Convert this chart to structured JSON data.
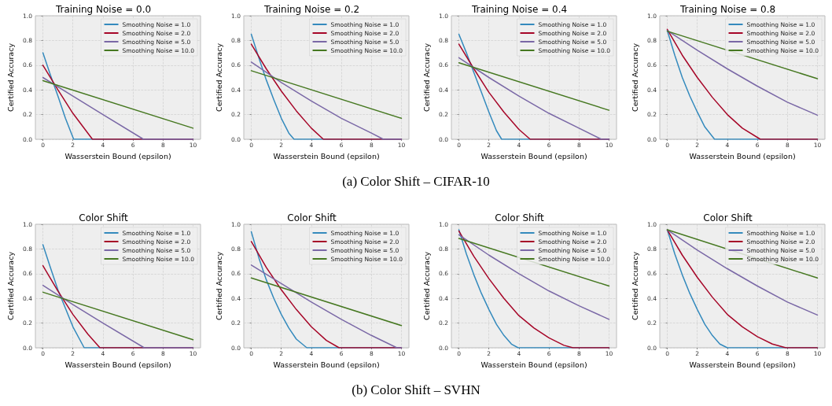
{
  "chart_data": [
    {
      "type": "line",
      "title": "Training Noise = 0.0",
      "xlabel": "Wasserstein Bound (epsilon)",
      "ylabel": "Certified Accuracy",
      "annotations": [
        "(a) Color Shift – CIFAR-10"
      ],
      "xlim": [
        -0.5,
        10.5
      ],
      "xticks": [
        0,
        2,
        4,
        6,
        8,
        10
      ],
      "ylim": [
        0,
        1
      ],
      "yticks": [
        {
          "value": 0,
          "label": "0.0"
        },
        {
          "value": 0.2,
          "label": "0.2"
        },
        {
          "value": 0.4,
          "label": "0.4"
        },
        {
          "value": 0.6,
          "label": "0.6"
        },
        {
          "value": 0.8,
          "label": "0.8"
        },
        {
          "value": 1,
          "label": "1.0"
        }
      ],
      "grid": true,
      "legend": "top right",
      "marker": "none",
      "line_style": "solid",
      "series": [
        {
          "name": "Smoothing Noise = 1.0",
          "color": "#348abd",
          "x": [
            0,
            0.5,
            1,
            1.5,
            2.05,
            10
          ],
          "values": [
            0.7,
            0.52,
            0.35,
            0.17,
            0,
            0
          ]
        },
        {
          "name": "Smoothing Noise = 2.0",
          "color": "#a60628",
          "x": [
            0,
            1,
            2,
            3.3,
            10
          ],
          "values": [
            0.6,
            0.4,
            0.21,
            0,
            0
          ]
        },
        {
          "name": "Smoothing Noise = 5.0",
          "color": "#7a68a6",
          "x": [
            0,
            2,
            4,
            6.7,
            10
          ],
          "values": [
            0.5,
            0.35,
            0.2,
            0,
            0
          ]
        },
        {
          "name": "Smoothing Noise = 10.0",
          "color": "#467821",
          "x": [
            0,
            10
          ],
          "values": [
            0.475,
            0.09
          ]
        }
      ]
    },
    {
      "type": "line",
      "title": "Training Noise = 0.2",
      "xlabel": "Wasserstein Bound (epsilon)",
      "ylabel": "Certified Accuracy",
      "xlim": [
        -0.5,
        10.5
      ],
      "xticks": [
        0,
        2,
        4,
        6,
        8,
        10
      ],
      "ylim": [
        0,
        1
      ],
      "yticks": [
        {
          "value": 0,
          "label": "0.0"
        },
        {
          "value": 0.2,
          "label": "0.2"
        },
        {
          "value": 0.4,
          "label": "0.4"
        },
        {
          "value": 0.6,
          "label": "0.6"
        },
        {
          "value": 0.8,
          "label": "0.8"
        },
        {
          "value": 1,
          "label": "1.0"
        }
      ],
      "grid": true,
      "legend": "top right",
      "marker": "none",
      "line_style": "solid",
      "series": [
        {
          "name": "Smoothing Noise = 1.0",
          "color": "#348abd",
          "x": [
            0,
            0.5,
            1,
            1.5,
            2,
            2.5,
            2.85,
            10
          ],
          "values": [
            0.85,
            0.66,
            0.48,
            0.32,
            0.17,
            0.05,
            0,
            0
          ]
        },
        {
          "name": "Smoothing Noise = 2.0",
          "color": "#a60628",
          "x": [
            0,
            1,
            2,
            3,
            4,
            4.8,
            10
          ],
          "values": [
            0.77,
            0.57,
            0.39,
            0.23,
            0.09,
            0,
            0
          ]
        },
        {
          "name": "Smoothing Noise = 5.0",
          "color": "#7a68a6",
          "x": [
            0,
            2,
            4,
            6,
            8,
            8.8,
            10
          ],
          "values": [
            0.625,
            0.46,
            0.31,
            0.17,
            0.05,
            0,
            0
          ]
        },
        {
          "name": "Smoothing Noise = 10.0",
          "color": "#467821",
          "x": [
            0,
            10
          ],
          "values": [
            0.555,
            0.17
          ]
        }
      ]
    },
    {
      "type": "line",
      "title": "Training Noise = 0.4",
      "xlabel": "Wasserstein Bound (epsilon)",
      "ylabel": "Certified Accuracy",
      "xlim": [
        -0.5,
        10.5
      ],
      "xticks": [
        0,
        2,
        4,
        6,
        8,
        10
      ],
      "ylim": [
        0,
        1
      ],
      "yticks": [
        {
          "value": 0,
          "label": "0.0"
        },
        {
          "value": 0.2,
          "label": "0.2"
        },
        {
          "value": 0.4,
          "label": "0.4"
        },
        {
          "value": 0.6,
          "label": "0.6"
        },
        {
          "value": 0.8,
          "label": "0.8"
        },
        {
          "value": 1,
          "label": "1.0"
        }
      ],
      "grid": true,
      "legend": "top right",
      "marker": "none",
      "line_style": "solid",
      "series": [
        {
          "name": "Smoothing Noise = 1.0",
          "color": "#348abd",
          "x": [
            0,
            0.5,
            1,
            1.5,
            2,
            2.5,
            2.85,
            10
          ],
          "values": [
            0.85,
            0.7,
            0.54,
            0.38,
            0.22,
            0.07,
            0,
            0
          ]
        },
        {
          "name": "Smoothing Noise = 2.0",
          "color": "#a60628",
          "x": [
            0,
            1,
            2,
            3,
            4,
            4.75,
            10
          ],
          "values": [
            0.77,
            0.57,
            0.38,
            0.22,
            0.08,
            0,
            0
          ]
        },
        {
          "name": "Smoothing Noise = 5.0",
          "color": "#7a68a6",
          "x": [
            0,
            2,
            4,
            6,
            8,
            9.5,
            10
          ],
          "values": [
            0.66,
            0.5,
            0.35,
            0.21,
            0.09,
            0,
            0
          ]
        },
        {
          "name": "Smoothing Noise = 10.0",
          "color": "#467821",
          "x": [
            0,
            10
          ],
          "values": [
            0.62,
            0.235
          ]
        }
      ]
    },
    {
      "type": "line",
      "title": "Training Noise = 0.8",
      "xlabel": "Wasserstein Bound (epsilon)",
      "ylabel": "Certified Accuracy",
      "xlim": [
        -0.5,
        10.5
      ],
      "xticks": [
        0,
        2,
        4,
        6,
        8,
        10
      ],
      "ylim": [
        0,
        1
      ],
      "yticks": [
        {
          "value": 0,
          "label": "0.0"
        },
        {
          "value": 0.2,
          "label": "0.2"
        },
        {
          "value": 0.4,
          "label": "0.4"
        },
        {
          "value": 0.6,
          "label": "0.6"
        },
        {
          "value": 0.8,
          "label": "0.8"
        },
        {
          "value": 1,
          "label": "1.0"
        }
      ],
      "grid": true,
      "legend": "top right",
      "marker": "none",
      "line_style": "solid",
      "series": [
        {
          "name": "Smoothing Noise = 1.0",
          "color": "#348abd",
          "x": [
            0,
            0.5,
            1,
            1.5,
            2,
            2.5,
            3.15,
            10
          ],
          "values": [
            0.88,
            0.68,
            0.5,
            0.35,
            0.22,
            0.1,
            0,
            0
          ]
        },
        {
          "name": "Smoothing Noise = 2.0",
          "color": "#a60628",
          "x": [
            0,
            1,
            2,
            3,
            4,
            5,
            6.2,
            10
          ],
          "values": [
            0.89,
            0.68,
            0.5,
            0.34,
            0.2,
            0.09,
            0,
            0
          ]
        },
        {
          "name": "Smoothing Noise = 5.0",
          "color": "#7a68a6",
          "x": [
            0,
            2,
            4,
            6,
            8,
            10
          ],
          "values": [
            0.88,
            0.72,
            0.57,
            0.43,
            0.3,
            0.195
          ]
        },
        {
          "name": "Smoothing Noise = 10.0",
          "color": "#467821",
          "x": [
            0,
            10
          ],
          "values": [
            0.875,
            0.49
          ]
        }
      ]
    },
    {
      "type": "line",
      "title": "Color Shift",
      "xlabel": "Wasserstein Bound (epsilon)",
      "ylabel": "Certified Accuracy",
      "annotations": [
        "(b) Color Shift – SVHN"
      ],
      "xlim": [
        -0.5,
        10.5
      ],
      "xticks": [
        0,
        2,
        4,
        6,
        8,
        10
      ],
      "ylim": [
        0,
        1
      ],
      "yticks": [
        {
          "value": 0,
          "label": "0.0"
        },
        {
          "value": 0.2,
          "label": "0.2"
        },
        {
          "value": 0.4,
          "label": "0.4"
        },
        {
          "value": 0.6,
          "label": "0.6"
        },
        {
          "value": 0.8,
          "label": "0.8"
        },
        {
          "value": 1,
          "label": "1.0"
        }
      ],
      "grid": true,
      "legend": "top right",
      "marker": "none",
      "line_style": "solid",
      "series": [
        {
          "name": "Smoothing Noise = 1.0",
          "color": "#348abd",
          "x": [
            0,
            0.5,
            1,
            1.5,
            2,
            2.75,
            10
          ],
          "values": [
            0.835,
            0.65,
            0.47,
            0.32,
            0.17,
            0,
            0
          ]
        },
        {
          "name": "Smoothing Noise = 2.0",
          "color": "#a60628",
          "x": [
            0,
            1,
            2,
            3,
            3.8,
            10
          ],
          "values": [
            0.665,
            0.46,
            0.27,
            0.11,
            0,
            0
          ]
        },
        {
          "name": "Smoothing Noise = 5.0",
          "color": "#7a68a6",
          "x": [
            0,
            2,
            4,
            6.75,
            10
          ],
          "values": [
            0.505,
            0.35,
            0.2,
            0,
            0
          ]
        },
        {
          "name": "Smoothing Noise = 10.0",
          "color": "#467821",
          "x": [
            0,
            10
          ],
          "values": [
            0.45,
            0.065
          ]
        }
      ]
    },
    {
      "type": "line",
      "title": "Color Shift",
      "xlabel": "Wasserstein Bound (epsilon)",
      "ylabel": "Certified Accuracy",
      "xlim": [
        -0.5,
        10.5
      ],
      "xticks": [
        0,
        2,
        4,
        6,
        8,
        10
      ],
      "ylim": [
        0,
        1
      ],
      "yticks": [
        {
          "value": 0,
          "label": "0.0"
        },
        {
          "value": 0.2,
          "label": "0.2"
        },
        {
          "value": 0.4,
          "label": "0.4"
        },
        {
          "value": 0.6,
          "label": "0.6"
        },
        {
          "value": 0.8,
          "label": "0.8"
        },
        {
          "value": 1,
          "label": "1.0"
        }
      ],
      "grid": true,
      "legend": "top right",
      "marker": "none",
      "line_style": "solid",
      "series": [
        {
          "name": "Smoothing Noise = 1.0",
          "color": "#348abd",
          "x": [
            0,
            0.5,
            1,
            1.5,
            2,
            2.5,
            3,
            3.7,
            10
          ],
          "values": [
            0.94,
            0.73,
            0.55,
            0.4,
            0.27,
            0.16,
            0.07,
            0,
            0
          ]
        },
        {
          "name": "Smoothing Noise = 2.0",
          "color": "#a60628",
          "x": [
            0,
            1,
            2,
            3,
            4,
            5,
            5.85,
            10
          ],
          "values": [
            0.86,
            0.65,
            0.47,
            0.31,
            0.17,
            0.06,
            0,
            0
          ]
        },
        {
          "name": "Smoothing Noise = 5.0",
          "color": "#7a68a6",
          "x": [
            0,
            2,
            4,
            6,
            8,
            9.7,
            10
          ],
          "values": [
            0.67,
            0.52,
            0.37,
            0.23,
            0.1,
            0,
            0
          ]
        },
        {
          "name": "Smoothing Noise = 10.0",
          "color": "#467821",
          "x": [
            0,
            10
          ],
          "values": [
            0.565,
            0.18
          ]
        }
      ]
    },
    {
      "type": "line",
      "title": "Color Shift",
      "xlabel": "Wasserstein Bound (epsilon)",
      "ylabel": "Certified Accuracy",
      "xlim": [
        -0.5,
        10.5
      ],
      "xticks": [
        0,
        2,
        4,
        6,
        8,
        10
      ],
      "ylim": [
        0,
        1
      ],
      "yticks": [
        {
          "value": 0,
          "label": "0.0"
        },
        {
          "value": 0.2,
          "label": "0.2"
        },
        {
          "value": 0.4,
          "label": "0.4"
        },
        {
          "value": 0.6,
          "label": "0.6"
        },
        {
          "value": 0.8,
          "label": "0.8"
        },
        {
          "value": 1,
          "label": "1.0"
        }
      ],
      "grid": true,
      "legend": "top right",
      "marker": "none",
      "line_style": "solid",
      "series": [
        {
          "name": "Smoothing Noise = 1.0",
          "color": "#348abd",
          "x": [
            0,
            0.5,
            1,
            1.5,
            2,
            2.5,
            3,
            3.5,
            3.95,
            10
          ],
          "values": [
            0.955,
            0.76,
            0.59,
            0.44,
            0.31,
            0.19,
            0.1,
            0.03,
            0,
            0
          ]
        },
        {
          "name": "Smoothing Noise = 2.0",
          "color": "#a60628",
          "x": [
            0,
            1,
            2,
            3,
            4,
            5,
            6,
            7,
            7.6,
            10
          ],
          "values": [
            0.945,
            0.74,
            0.56,
            0.4,
            0.26,
            0.16,
            0.08,
            0.02,
            0,
            0
          ]
        },
        {
          "name": "Smoothing Noise = 5.0",
          "color": "#7a68a6",
          "x": [
            0,
            2,
            4,
            6,
            8,
            10
          ],
          "values": [
            0.915,
            0.75,
            0.6,
            0.46,
            0.34,
            0.23
          ]
        },
        {
          "name": "Smoothing Noise = 10.0",
          "color": "#467821",
          "x": [
            0,
            10
          ],
          "values": [
            0.885,
            0.5
          ]
        }
      ]
    },
    {
      "type": "line",
      "title": "Color Shift",
      "xlabel": "Wasserstein Bound (epsilon)",
      "ylabel": "Certified Accuracy",
      "xlim": [
        -0.5,
        10.5
      ],
      "xticks": [
        0,
        2,
        4,
        6,
        8,
        10
      ],
      "ylim": [
        0,
        1
      ],
      "yticks": [
        {
          "value": 0,
          "label": "0.0"
        },
        {
          "value": 0.2,
          "label": "0.2"
        },
        {
          "value": 0.4,
          "label": "0.4"
        },
        {
          "value": 0.6,
          "label": "0.6"
        },
        {
          "value": 0.8,
          "label": "0.8"
        },
        {
          "value": 1,
          "label": "1.0"
        }
      ],
      "grid": true,
      "legend": "top right",
      "marker": "none",
      "line_style": "solid",
      "series": [
        {
          "name": "Smoothing Noise = 1.0",
          "color": "#348abd",
          "x": [
            0,
            0.5,
            1,
            1.5,
            2,
            2.5,
            3,
            3.5,
            4,
            10
          ],
          "values": [
            0.955,
            0.76,
            0.59,
            0.44,
            0.31,
            0.19,
            0.1,
            0.03,
            0,
            0
          ]
        },
        {
          "name": "Smoothing Noise = 2.0",
          "color": "#a60628",
          "x": [
            0,
            1,
            2,
            3,
            4,
            5,
            6,
            7,
            7.9,
            10
          ],
          "values": [
            0.955,
            0.75,
            0.57,
            0.41,
            0.27,
            0.17,
            0.09,
            0.03,
            0,
            0
          ]
        },
        {
          "name": "Smoothing Noise = 5.0",
          "color": "#7a68a6",
          "x": [
            0,
            2,
            4,
            6,
            8,
            10
          ],
          "values": [
            0.955,
            0.79,
            0.64,
            0.5,
            0.37,
            0.265
          ]
        },
        {
          "name": "Smoothing Noise = 10.0",
          "color": "#467821",
          "x": [
            0,
            10
          ],
          "values": [
            0.955,
            0.565
          ]
        }
      ]
    }
  ]
}
